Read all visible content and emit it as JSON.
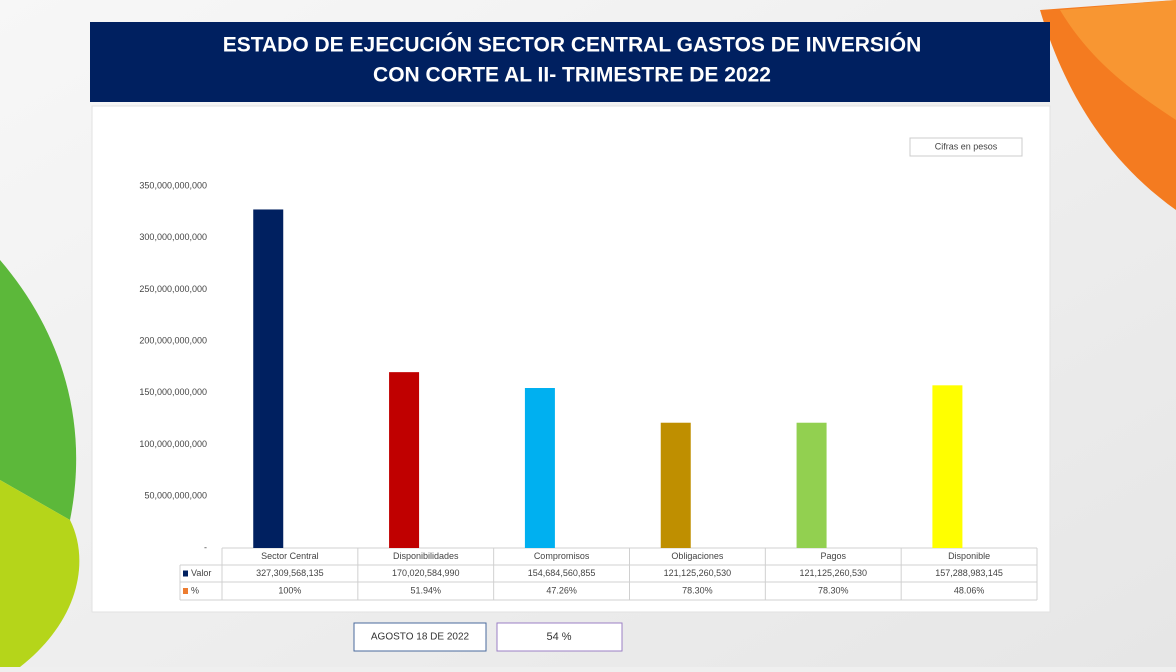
{
  "chart_data": {
    "type": "bar",
    "title": [
      "ESTADO DE EJECUCIÓN SECTOR CENTRAL GASTOS DE INVERSIÓN",
      "CON CORTE AL II- TRIMESTRE DE 2022"
    ],
    "note": "Cifras  en pesos",
    "categories": [
      "Sector Central",
      "Disponibilidades",
      "Compromisos",
      "Obligaciones",
      "Pagos",
      "Disponible"
    ],
    "colors": [
      "#002060",
      "#c00000",
      "#00b0f0",
      "#bf8f00",
      "#92d050",
      "#ffff00"
    ],
    "series": [
      {
        "name": "Valor",
        "color": "#002060",
        "values": [
          327309568135,
          170020584990,
          154684560855,
          121125260530,
          121125260530,
          157288983145
        ],
        "value_labels": [
          "327,309,568,135",
          "170,020,584,990",
          "154,684,560,855",
          "121,125,260,530",
          "121,125,260,530",
          "157,288,983,145"
        ]
      },
      {
        "name": "%",
        "color": "#ed7d31",
        "values": [
          100,
          51.94,
          47.26,
          78.3,
          78.3,
          48.06
        ],
        "value_labels": [
          "100%",
          "51.94%",
          "47.26%",
          "78.30%",
          "78.30%",
          "48.06%"
        ]
      }
    ],
    "ylim": [
      0,
      350000000000
    ],
    "yticks": [
      {
        "value": 0,
        "label": "-"
      },
      {
        "value": 50000000000,
        "label": "50,000,000,000"
      },
      {
        "value": 100000000000,
        "label": "100,000,000,000"
      },
      {
        "value": 150000000000,
        "label": "150,000,000,000"
      },
      {
        "value": 200000000000,
        "label": "200,000,000,000"
      },
      {
        "value": 250000000000,
        "label": "250,000,000,000"
      },
      {
        "value": 300000000000,
        "label": "300,000,000,000"
      },
      {
        "value": 350000000000,
        "label": "350,000,000,000"
      }
    ],
    "grid": false
  },
  "footer": {
    "date": "AGOSTO 18 DE 2022",
    "percent": "54 %"
  }
}
